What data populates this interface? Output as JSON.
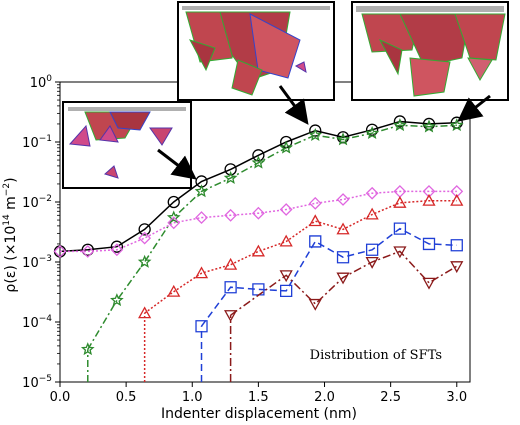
{
  "chart_data": {
    "type": "line",
    "xlabel": "Indenter displacement (nm)",
    "ylabel": "ρ(ε) (×10",
    "ylabel_sup": "14",
    "ylabel_unit": " m",
    "ylabel_unit_sup": "−2",
    "ylabel_close": ")",
    "yscale": "log",
    "xlim": [
      0.0,
      3.1
    ],
    "ylim": [
      1e-05,
      1.0
    ],
    "x_ticks": [
      0.0,
      0.5,
      1.0,
      1.5,
      2.0,
      2.5,
      3.0
    ],
    "x_tick_labels": [
      "0.0",
      "0.5",
      "1.0",
      "1.5",
      "2.0",
      "2.5",
      "3.0"
    ],
    "y_ticks": [
      1e-05,
      0.0001,
      0.001,
      0.01,
      0.1,
      1.0
    ],
    "y_tick_labels": [
      {
        "base": "10",
        "exp": "−5"
      },
      {
        "base": "10",
        "exp": "−4"
      },
      {
        "base": "10",
        "exp": "−3"
      },
      {
        "base": "10",
        "exp": "−2"
      },
      {
        "base": "10",
        "exp": "−1"
      },
      {
        "base": "10",
        "exp": "0"
      }
    ],
    "annotation": "Distribution of SFTs",
    "grid": false,
    "series": [
      {
        "color": "#000000",
        "dash": "",
        "marker": "circle",
        "x": [
          0.0,
          0.21,
          0.43,
          0.64,
          0.86,
          1.07,
          1.29,
          1.5,
          1.71,
          1.93,
          2.14,
          2.36,
          2.57,
          2.79,
          3.0
        ],
        "y": [
          0.0015,
          0.0016,
          0.0018,
          0.0035,
          0.01,
          0.022,
          0.035,
          0.06,
          0.1,
          0.155,
          0.12,
          0.16,
          0.22,
          0.2,
          0.21
        ]
      },
      {
        "color": "#2e8b2e",
        "dash": "7,3,2,3",
        "marker": "star",
        "x": [
          0.21,
          0.43,
          0.64,
          0.86,
          1.07,
          1.29,
          1.5,
          1.71,
          1.93,
          2.14,
          2.36,
          2.57,
          2.79,
          3.0
        ],
        "y": [
          3.5e-05,
          0.00023,
          0.001,
          0.0055,
          0.015,
          0.025,
          0.045,
          0.08,
          0.13,
          0.11,
          0.14,
          0.19,
          0.18,
          0.19
        ]
      },
      {
        "color": "#e066e0",
        "dash": "2,2",
        "marker": "diamond",
        "x": [
          0.0,
          0.21,
          0.43,
          0.64,
          0.86,
          1.07,
          1.29,
          1.5,
          1.71,
          1.93,
          2.14,
          2.36,
          2.57,
          2.79,
          3.0
        ],
        "y": [
          0.0015,
          0.0015,
          0.0016,
          0.0025,
          0.0045,
          0.0055,
          0.006,
          0.0065,
          0.0075,
          0.0095,
          0.011,
          0.014,
          0.015,
          0.015,
          0.015
        ]
      },
      {
        "color": "#d62828",
        "dash": "2,2",
        "marker": "triangle-up",
        "x": [
          0.64,
          0.86,
          1.07,
          1.29,
          1.5,
          1.71,
          1.93,
          2.14,
          2.36,
          2.57,
          2.79,
          3.0
        ],
        "y": [
          0.00014,
          0.00032,
          0.00065,
          0.0009,
          0.0015,
          0.0022,
          0.0048,
          0.0035,
          0.0062,
          0.0097,
          0.0105,
          0.0105
        ]
      },
      {
        "color": "#1f3fd6",
        "dash": "7,4",
        "marker": "square",
        "x": [
          1.07,
          1.29,
          1.5,
          1.71,
          1.93,
          2.14,
          2.36,
          2.57,
          2.79,
          3.0
        ],
        "y": [
          8.5e-05,
          0.00038,
          0.00035,
          0.00033,
          0.0022,
          0.0012,
          0.0016,
          0.0036,
          0.002,
          0.0019
        ]
      },
      {
        "color": "#8b1a1a",
        "dash": "8,3,2,3",
        "marker": "triangle-down",
        "x": [
          1.29,
          1.71,
          1.93,
          2.14,
          2.36,
          2.57,
          2.79,
          3.0
        ],
        "y": [
          0.00013,
          0.0006,
          0.0002,
          0.00055,
          0.001,
          0.0015,
          0.00045,
          0.00085
        ]
      }
    ]
  },
  "insets": [
    {
      "id": "inset-left",
      "arrow_target": [
        0.86,
        0.022
      ]
    },
    {
      "id": "inset-middle",
      "arrow_target": [
        1.9,
        0.16
      ]
    },
    {
      "id": "inset-right",
      "arrow_target": [
        3.0,
        0.21
      ]
    }
  ]
}
